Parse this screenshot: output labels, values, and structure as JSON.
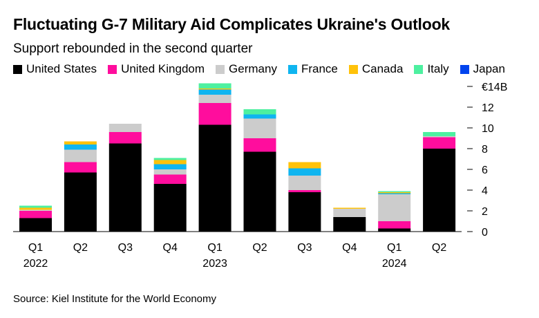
{
  "chart_data": {
    "type": "bar",
    "stacked": true,
    "title": "Fluctuating G-7 Military Aid Complicates Ukraine's Outlook",
    "subtitle": "Support rebounded in the second quarter",
    "categories": [
      "Q1",
      "Q2",
      "Q3",
      "Q4",
      "Q1",
      "Q2",
      "Q3",
      "Q4",
      "Q1",
      "Q2"
    ],
    "year_labels": [
      {
        "index": 0,
        "label": "2022"
      },
      {
        "index": 4,
        "label": "2023"
      },
      {
        "index": 8,
        "label": "2024"
      }
    ],
    "series": [
      {
        "name": "United States",
        "color": "#000000",
        "values": [
          1.3,
          5.7,
          8.5,
          4.6,
          10.3,
          7.7,
          3.8,
          1.4,
          0.3,
          8.0
        ]
      },
      {
        "name": "United Kingdom",
        "color": "#ff0d9d",
        "values": [
          0.7,
          1.0,
          1.1,
          0.9,
          2.1,
          1.3,
          0.2,
          0.0,
          0.7,
          1.1
        ]
      },
      {
        "name": "Germany",
        "color": "#cccccc",
        "values": [
          0.1,
          1.2,
          0.8,
          0.5,
          0.8,
          1.9,
          1.4,
          0.8,
          2.6,
          0.1
        ]
      },
      {
        "name": "France",
        "color": "#0fb5f0",
        "values": [
          0.0,
          0.5,
          0.0,
          0.5,
          0.5,
          0.4,
          0.7,
          0.0,
          0.1,
          0.0
        ]
      },
      {
        "name": "Canada",
        "color": "#ffc20a",
        "values": [
          0.2,
          0.3,
          0.0,
          0.4,
          0.1,
          0.0,
          0.6,
          0.1,
          0.1,
          0.0
        ]
      },
      {
        "name": "Italy",
        "color": "#4df0a0",
        "values": [
          0.2,
          0.0,
          0.0,
          0.2,
          0.5,
          0.5,
          0.0,
          0.0,
          0.1,
          0.4
        ]
      },
      {
        "name": "Japan",
        "color": "#0044ee",
        "values": [
          0.0,
          0.0,
          0.0,
          0.0,
          0.0,
          0.0,
          0.0,
          0.0,
          0.0,
          0.0
        ]
      }
    ],
    "ylim": [
      0,
      14
    ],
    "yticks": [
      0,
      2,
      4,
      6,
      8,
      10,
      12,
      14
    ],
    "ytick_labels": [
      "0",
      "2",
      "4",
      "6",
      "8",
      "10",
      "12",
      "€14B"
    ],
    "yaxis_side": "right",
    "legend_position": "top-left"
  },
  "source": "Source: Kiel Institute for the World Economy"
}
